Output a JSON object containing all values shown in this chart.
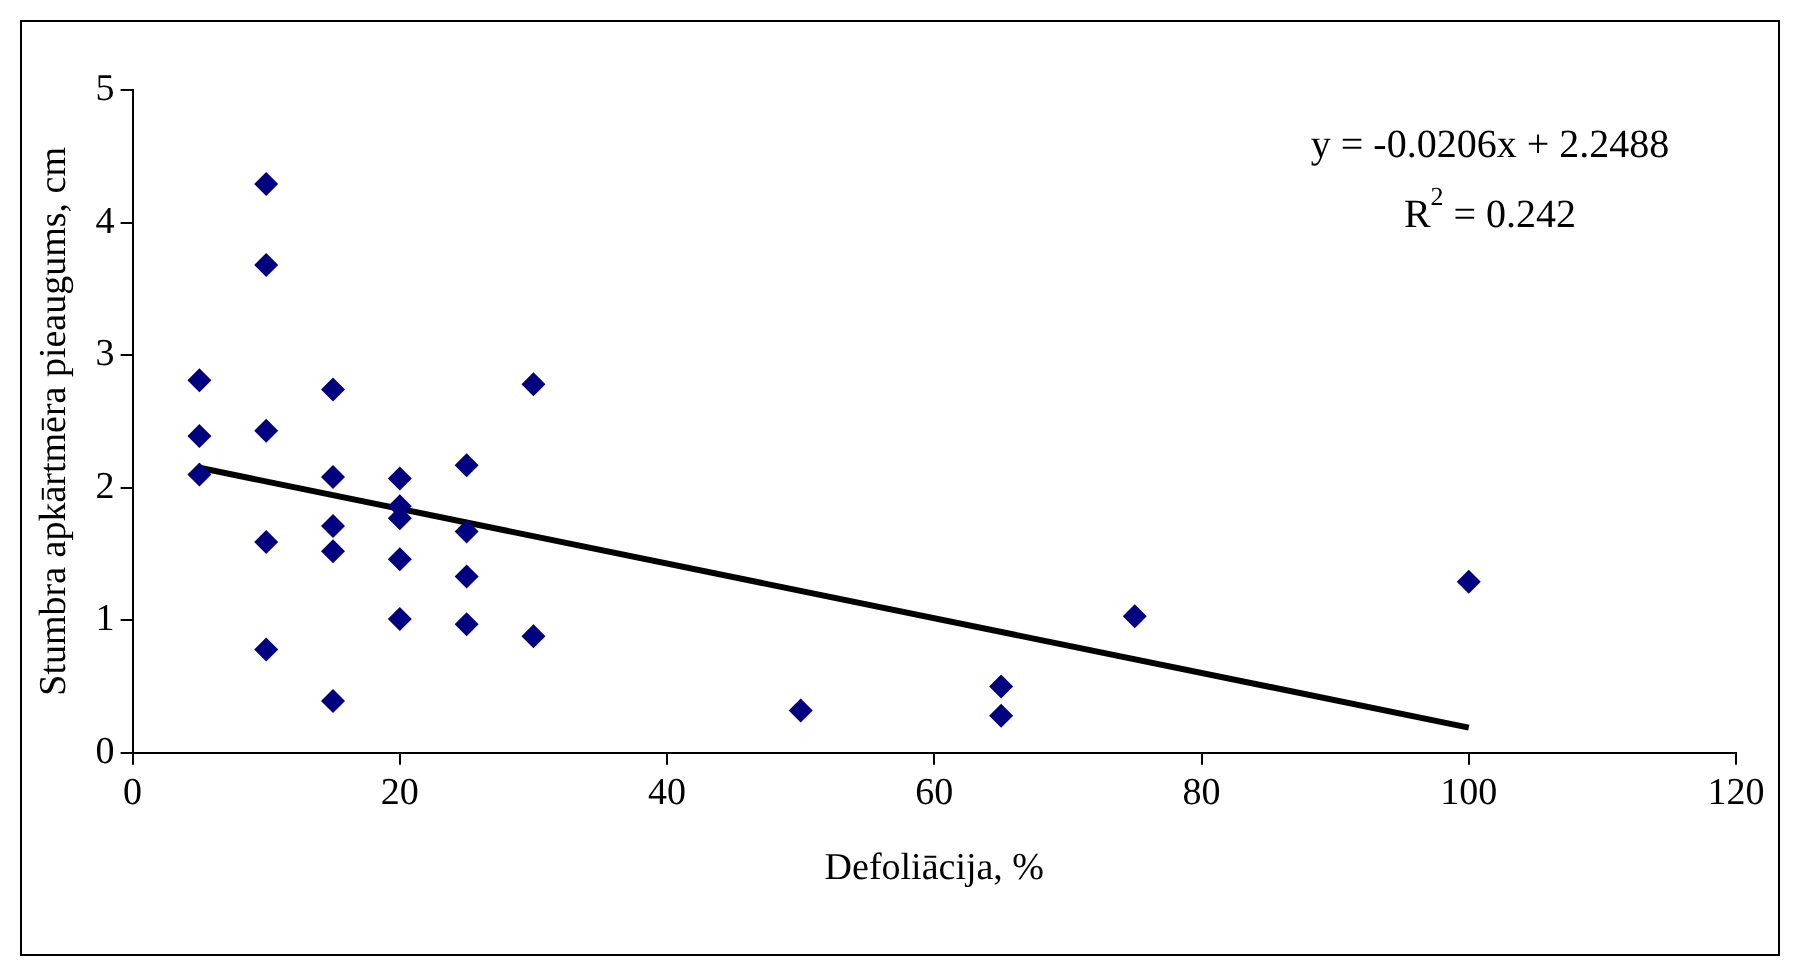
{
  "chart_data": {
    "type": "scatter",
    "xlabel": "Defoliācija, %",
    "ylabel": "Stumbra apkārtmēra pieaugums, cm",
    "xlim": [
      0,
      120
    ],
    "xticks": [
      0,
      20,
      40,
      60,
      80,
      100,
      120
    ],
    "ylim": [
      0,
      5
    ],
    "yticks": [
      0,
      1,
      2,
      3,
      4,
      5
    ],
    "grid": false,
    "legend": false,
    "annotations": [
      "y = -0.0206x + 2.2488",
      "R$^{2}$ = 0.242"
    ],
    "series": [
      {
        "color": "#000080",
        "marker": "diamond",
        "x": [
          5,
          5,
          5,
          10,
          10,
          10,
          10,
          10,
          15,
          15,
          15,
          15,
          15,
          20,
          20,
          20,
          20,
          20,
          25,
          25,
          25,
          25,
          30,
          30,
          50,
          65,
          65,
          75,
          100
        ],
        "values": [
          2.81,
          2.39,
          2.1,
          4.29,
          3.68,
          2.43,
          1.59,
          0.78,
          2.74,
          2.08,
          1.71,
          1.52,
          0.39,
          2.07,
          1.86,
          1.77,
          1.46,
          1.01,
          2.17,
          1.67,
          1.33,
          0.97,
          2.78,
          0.88,
          0.32,
          0.5,
          0.28,
          1.03,
          1.29
        ]
      },
      {
        "type": "line",
        "color": "#000000",
        "marker": "none",
        "line_style": "solid",
        "x": [
          5,
          100
        ],
        "values": [
          2.15,
          0.19
        ]
      }
    ]
  }
}
